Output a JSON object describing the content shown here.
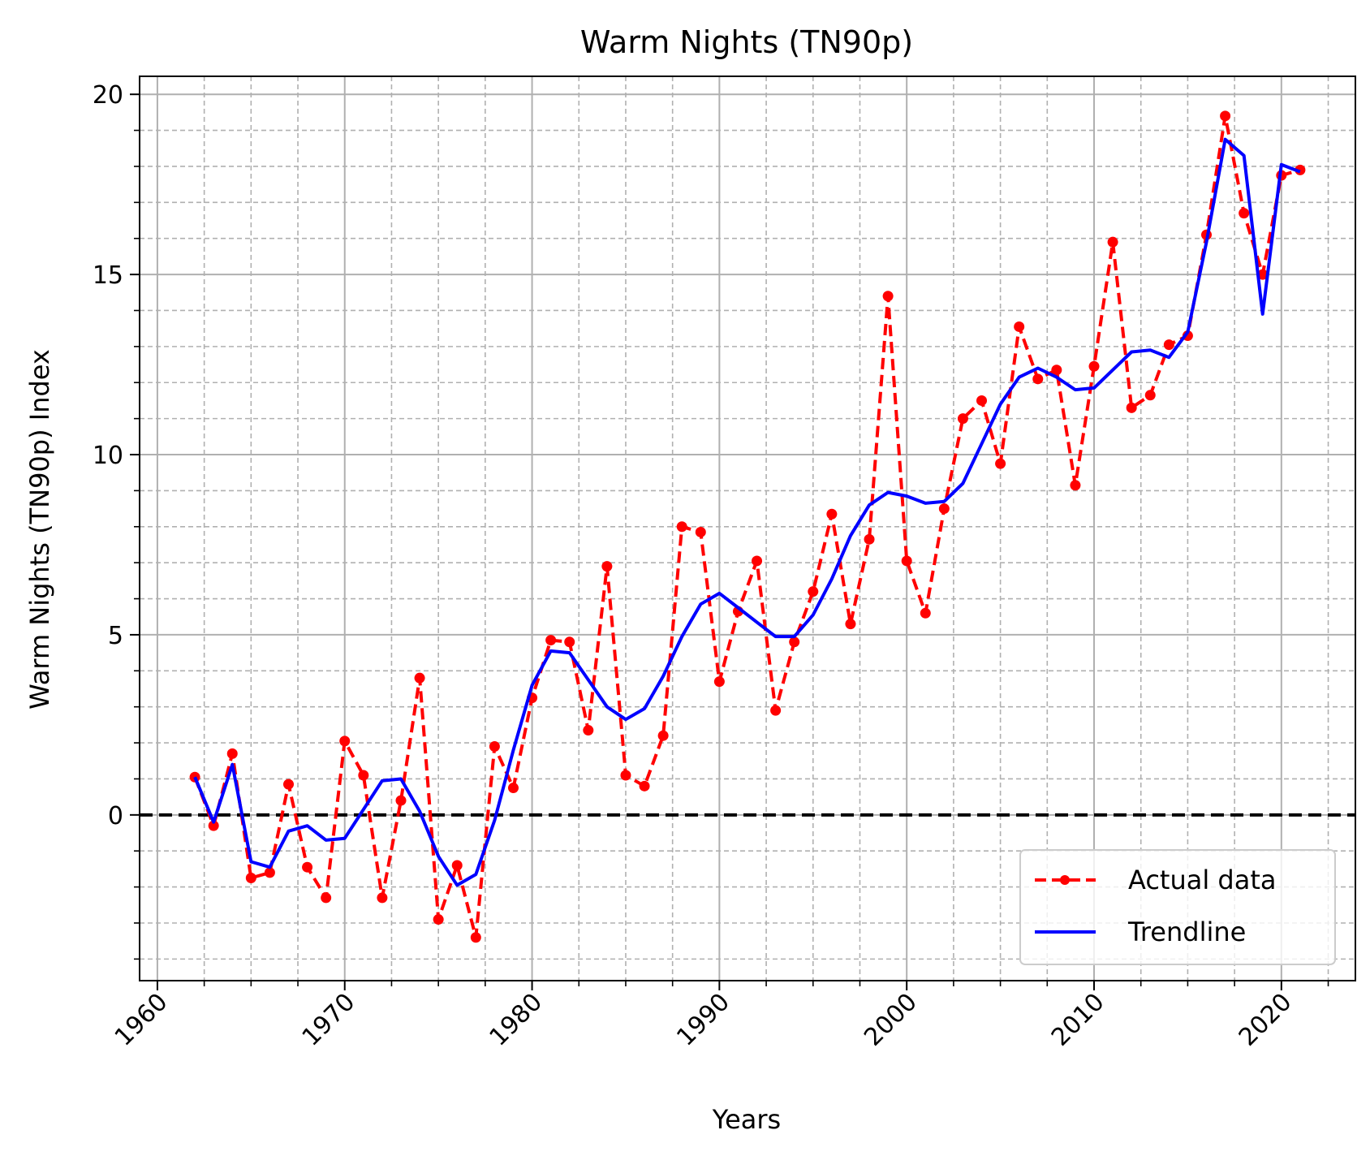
{
  "chart_data": {
    "type": "line",
    "title": "Warm Nights (TN90p)",
    "xlabel": "Years",
    "ylabel": "Warm Nights (TN90p) Index",
    "xlim": [
      1959.05,
      1963.95
    ],
    "ylim": [
      -4.6,
      20.5
    ],
    "xticks": [
      1960,
      1970,
      1980,
      1990,
      2000,
      2010,
      2020
    ],
    "xtick_labels": [
      "1960",
      "1970",
      "1980",
      "1990",
      "2000",
      "2010",
      "2020"
    ],
    "yticks": [
      0,
      5,
      10,
      15,
      20
    ],
    "ytick_labels": [
      "0",
      "5",
      "10",
      "15",
      "20"
    ],
    "grid": true,
    "minor_grid": true,
    "reference_line": 0,
    "legend_position": "lower-right",
    "series": [
      {
        "name": "Actual data",
        "style": "dashed-dots",
        "color": "#ff0000",
        "x": [
          1962,
          1963,
          1964,
          1965,
          1966,
          1967,
          1968,
          1969,
          1970,
          1971,
          1972,
          1973,
          1974,
          1975,
          1976,
          1977,
          1978,
          1979,
          1980,
          1981,
          1982,
          1983,
          1984,
          1985,
          1986,
          1987,
          1988,
          1989,
          1990,
          1991,
          1992,
          1993,
          1994,
          1995,
          1996,
          1997,
          1998,
          1999,
          2000,
          2001,
          2002,
          2003,
          2004,
          2005,
          2006,
          2007,
          2008,
          2009,
          2010,
          2011,
          2012,
          2013,
          2014,
          2015,
          2016,
          2017,
          2018,
          2019,
          2020,
          2021
        ],
        "values": [
          1.05,
          -0.3,
          1.7,
          -1.75,
          -1.6,
          0.85,
          -1.45,
          -2.3,
          2.05,
          1.1,
          -2.3,
          0.4,
          3.8,
          -2.9,
          -1.4,
          -3.4,
          1.9,
          0.75,
          3.25,
          4.85,
          4.8,
          2.35,
          6.9,
          1.1,
          0.8,
          2.2,
          8.0,
          7.85,
          3.7,
          5.65,
          7.05,
          2.9,
          4.8,
          6.2,
          8.35,
          5.3,
          7.65,
          14.4,
          7.05,
          5.6,
          8.5,
          11.0,
          11.5,
          9.75,
          13.55,
          12.1,
          12.35,
          9.15,
          12.45,
          15.9,
          11.3,
          11.65,
          13.05,
          13.3,
          16.1,
          19.4,
          16.7,
          15.0,
          17.75,
          17.9
        ]
      },
      {
        "name": "Trendline",
        "style": "solid",
        "color": "#0000ff",
        "x": [
          1962,
          1963,
          1964,
          1965,
          1966,
          1967,
          1968,
          1969,
          1970,
          1971,
          1972,
          1973,
          1974,
          1975,
          1976,
          1977,
          1978,
          1979,
          1980,
          1981,
          1982,
          1983,
          1984,
          1985,
          1986,
          1987,
          1988,
          1989,
          1990,
          1991,
          1992,
          1993,
          1994,
          1995,
          1996,
          1997,
          1998,
          1999,
          2000,
          2001,
          2002,
          2003,
          2004,
          2005,
          2006,
          2007,
          2008,
          2009,
          2010,
          2011,
          2012,
          2013,
          2014,
          2015,
          2016,
          2017,
          2018,
          2019,
          2020,
          2021
        ],
        "values": [
          1.05,
          -0.2,
          1.4,
          -1.3,
          -1.45,
          -0.45,
          -0.3,
          -0.7,
          -0.65,
          0.15,
          0.95,
          1.0,
          0.1,
          -1.15,
          -1.95,
          -1.65,
          -0.15,
          1.8,
          3.6,
          4.55,
          4.5,
          3.75,
          3.0,
          2.65,
          2.95,
          3.85,
          4.95,
          5.85,
          6.15,
          5.75,
          5.35,
          4.95,
          4.95,
          5.55,
          6.55,
          7.75,
          8.6,
          8.95,
          8.85,
          8.65,
          8.7,
          9.2,
          10.3,
          11.4,
          12.15,
          12.4,
          12.15,
          11.8,
          11.85,
          12.35,
          12.85,
          12.9,
          12.7,
          13.4,
          15.9,
          18.75,
          18.3,
          13.9,
          18.05,
          17.85
        ]
      }
    ]
  }
}
